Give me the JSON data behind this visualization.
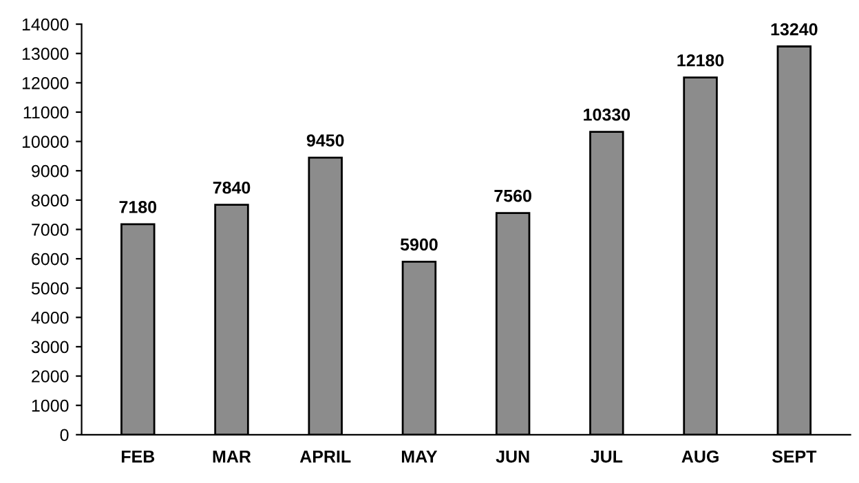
{
  "chart_data": {
    "type": "bar",
    "categories": [
      "FEB",
      "MAR",
      "APRIL",
      "MAY",
      "JUN",
      "JUL",
      "AUG",
      "SEPT"
    ],
    "values": [
      7180,
      7840,
      9450,
      5900,
      7560,
      10330,
      12180,
      13240
    ],
    "color": "#8c8c8c",
    "ylim": [
      0,
      14000
    ],
    "yticks": [
      0,
      1000,
      2000,
      3000,
      4000,
      5000,
      6000,
      7000,
      8000,
      9000,
      10000,
      11000,
      12000,
      13000,
      14000
    ],
    "data_labels": true,
    "grid": false,
    "legend": false
  }
}
